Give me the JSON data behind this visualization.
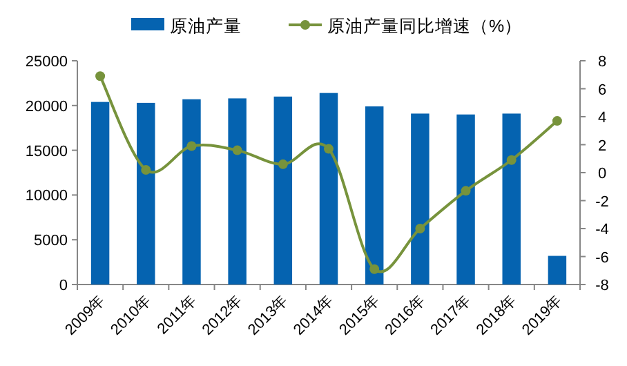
{
  "chart_data": {
    "type": "bar",
    "categories": [
      "2009年",
      "2010年",
      "2011年",
      "2012年",
      "2013年",
      "2014年",
      "2015年",
      "2016年",
      "2017年",
      "2018年",
      "2019年"
    ],
    "series": [
      {
        "name": "原油产量",
        "color": "#0563b0",
        "values": [
          20400,
          20300,
          20700,
          20800,
          21000,
          21400,
          19900,
          19100,
          19000,
          19100,
          3200
        ]
      },
      {
        "name": "原油产量同比增速（%）",
        "type": "line",
        "axis": "y2",
        "color": "#77933c",
        "marker": "circle",
        "values": [
          6.9,
          0.2,
          1.9,
          1.6,
          0.6,
          1.7,
          -6.9,
          -4.0,
          -1.3,
          0.9,
          3.7
        ]
      }
    ],
    "ylim": [
      0,
      25000
    ],
    "yticks": [
      0,
      5000,
      10000,
      15000,
      20000,
      25000
    ],
    "y2lim": [
      -8,
      8
    ],
    "y2ticks": [
      -8,
      -6,
      -4,
      -2,
      0,
      2,
      4,
      6,
      8
    ],
    "legend": "top",
    "grid": false
  }
}
